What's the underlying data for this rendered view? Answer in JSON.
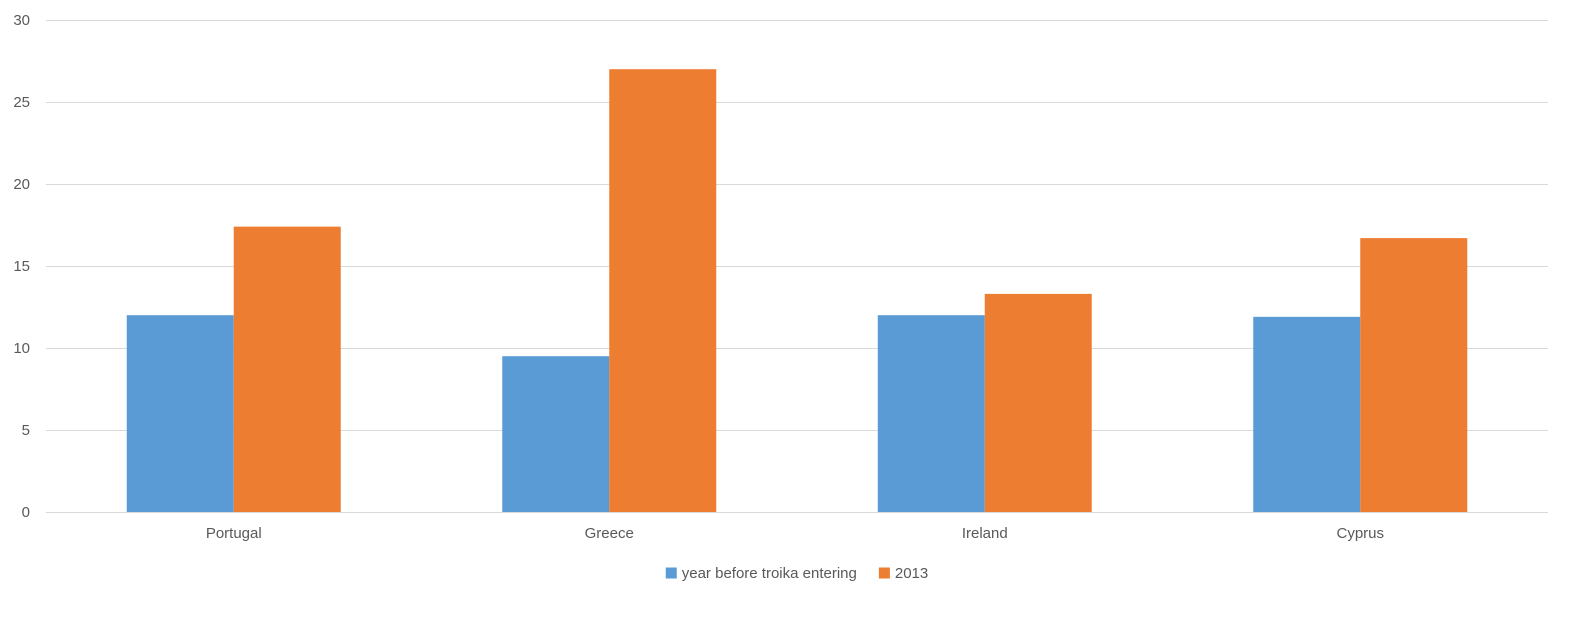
{
  "chart_data": {
    "type": "bar",
    "title": "",
    "xlabel": "",
    "ylabel": "",
    "categories": [
      "Portugal",
      "Greece",
      "Ireland",
      "Cyprus"
    ],
    "series": [
      {
        "name": "year before troika entering",
        "color": "#5B9BD5",
        "values": [
          12.0,
          9.5,
          12.0,
          11.9
        ]
      },
      {
        "name": "2013",
        "color": "#ED7D31",
        "values": [
          17.4,
          27.0,
          13.3,
          16.7
        ]
      }
    ],
    "ylim": [
      0,
      30
    ],
    "yticks": [
      0,
      5,
      10,
      15,
      20,
      25,
      30
    ],
    "grid": true,
    "legend_position": "bottom"
  }
}
